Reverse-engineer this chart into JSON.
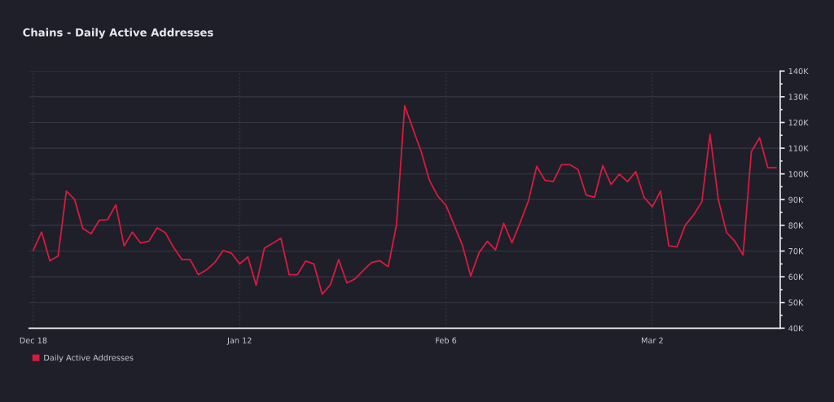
{
  "chart_data": {
    "type": "line",
    "title": "Chains - Daily Active Addresses",
    "categories": [
      "Dec 18",
      null,
      null,
      null,
      null,
      null,
      null,
      null,
      null,
      null,
      null,
      null,
      null,
      null,
      null,
      null,
      null,
      null,
      null,
      null,
      null,
      null,
      null,
      null,
      null,
      "Jan 12",
      null,
      null,
      null,
      null,
      null,
      null,
      null,
      null,
      null,
      null,
      null,
      null,
      null,
      null,
      null,
      null,
      null,
      null,
      null,
      null,
      null,
      null,
      null,
      null,
      "Feb 6",
      null,
      null,
      null,
      null,
      null,
      null,
      null,
      null,
      null,
      null,
      null,
      null,
      null,
      null,
      null,
      null,
      null,
      null,
      null,
      null,
      null,
      null,
      null,
      null,
      "Mar 2",
      null,
      null,
      null,
      null,
      null,
      null,
      null,
      null,
      null,
      null,
      null,
      null,
      null,
      null,
      null
    ],
    "series": [
      {
        "name": "Daily Active Addresses",
        "color": "#d81b3c",
        "values": [
          70300,
          77400,
          66200,
          68000,
          93300,
          90100,
          78800,
          76700,
          82000,
          82200,
          88000,
          72000,
          77400,
          73100,
          73800,
          79000,
          77100,
          71400,
          66700,
          66700,
          60800,
          62700,
          65600,
          70200,
          69200,
          65000,
          67700,
          56700,
          71100,
          73000,
          75000,
          60800,
          60800,
          66100,
          65000,
          53200,
          56900,
          66700,
          57600,
          59200,
          62500,
          65600,
          66200,
          63900,
          80100,
          126500,
          117500,
          108600,
          97500,
          91400,
          87800,
          80100,
          72200,
          60300,
          69300,
          73800,
          70400,
          80800,
          73200,
          81100,
          89600,
          103000,
          97500,
          97000,
          103600,
          103600,
          101700,
          91700,
          90900,
          103300,
          95900,
          99900,
          97000,
          100900,
          90900,
          87200,
          93300,
          72000,
          71600,
          80100,
          84000,
          89100,
          115400,
          90100,
          77200,
          73800,
          68500,
          108600,
          114100,
          102400,
          102400
        ]
      }
    ],
    "ylim": [
      40000,
      140000
    ],
    "yticks": [
      {
        "value": 40000,
        "label": "40K"
      },
      {
        "value": 45000,
        "label": null
      },
      {
        "value": 50000,
        "label": "50K"
      },
      {
        "value": 55000,
        "label": null
      },
      {
        "value": 60000,
        "label": "60K"
      },
      {
        "value": 65000,
        "label": null
      },
      {
        "value": 70000,
        "label": "70K"
      },
      {
        "value": 75000,
        "label": null
      },
      {
        "value": 80000,
        "label": "80K"
      },
      {
        "value": 85000,
        "label": null
      },
      {
        "value": 90000,
        "label": "90K"
      },
      {
        "value": 95000,
        "label": null
      },
      {
        "value": 100000,
        "label": "100K"
      },
      {
        "value": 105000,
        "label": null
      },
      {
        "value": 110000,
        "label": "110K"
      },
      {
        "value": 115000,
        "label": null
      },
      {
        "value": 120000,
        "label": "120K"
      },
      {
        "value": 125000,
        "label": null
      },
      {
        "value": 130000,
        "label": "130K"
      },
      {
        "value": 135000,
        "label": null
      },
      {
        "value": 140000,
        "label": "140K"
      }
    ],
    "grid": true,
    "legend": "bottom left",
    "marker": "none",
    "line_style": "solid"
  }
}
